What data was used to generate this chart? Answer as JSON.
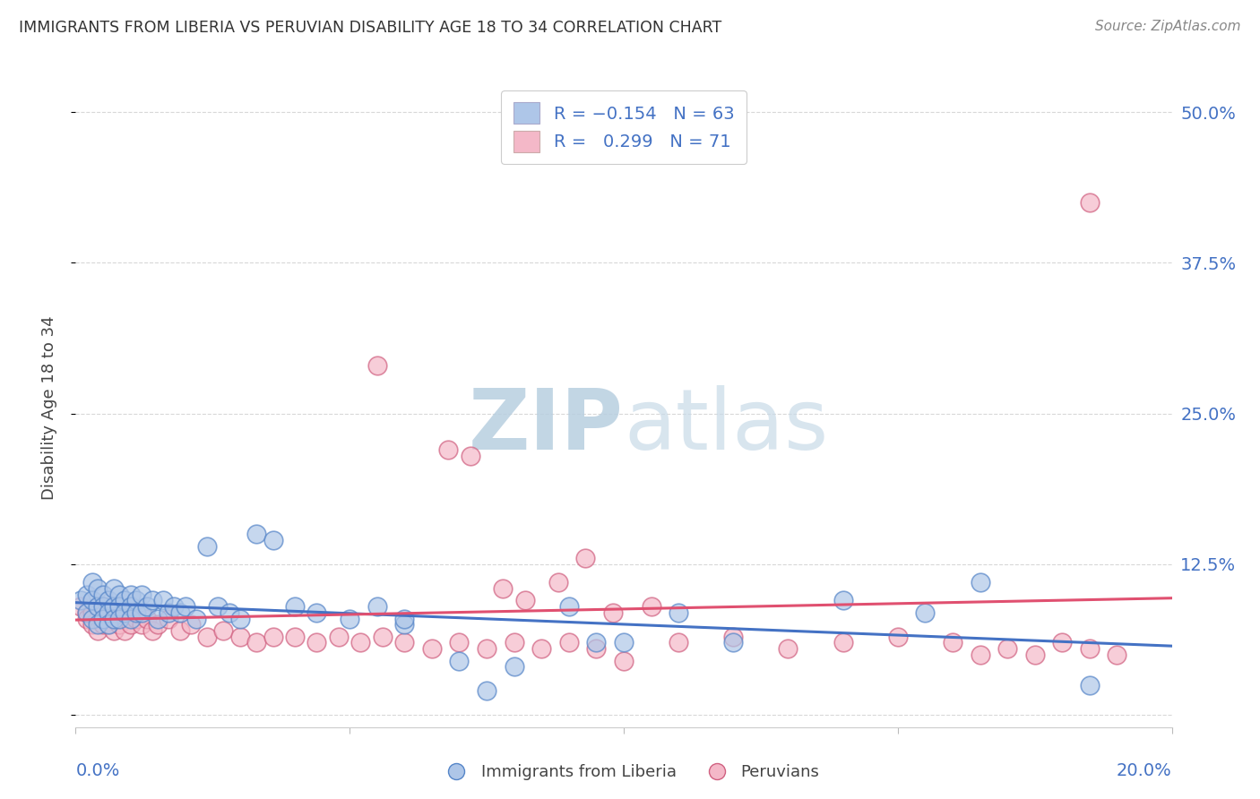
{
  "title": "IMMIGRANTS FROM LIBERIA VS PERUVIAN DISABILITY AGE 18 TO 34 CORRELATION CHART",
  "source": "Source: ZipAtlas.com",
  "ylabel": "Disability Age 18 to 34",
  "ytick_labels": [
    "",
    "12.5%",
    "25.0%",
    "37.5%",
    "50.0%"
  ],
  "ytick_values": [
    0.0,
    0.125,
    0.25,
    0.375,
    0.5
  ],
  "xlim": [
    0.0,
    0.2
  ],
  "ylim": [
    -0.01,
    0.52
  ],
  "blue_color": "#aec6e8",
  "pink_color": "#f4b8c8",
  "blue_line_color": "#4472c4",
  "pink_line_color": "#e05070",
  "blue_scatter_edge": "#5585c8",
  "pink_scatter_edge": "#d06080",
  "watermark_color": "#ccd9ea",
  "background_color": "#ffffff",
  "grid_color": "#d8d8d8",
  "title_color": "#333333",
  "axis_label_color": "#4472c4",
  "liberia_x": [
    0.001,
    0.002,
    0.002,
    0.003,
    0.003,
    0.003,
    0.004,
    0.004,
    0.004,
    0.005,
    0.005,
    0.005,
    0.006,
    0.006,
    0.006,
    0.007,
    0.007,
    0.007,
    0.008,
    0.008,
    0.008,
    0.009,
    0.009,
    0.01,
    0.01,
    0.01,
    0.011,
    0.011,
    0.012,
    0.012,
    0.013,
    0.014,
    0.015,
    0.016,
    0.017,
    0.018,
    0.019,
    0.02,
    0.022,
    0.024,
    0.026,
    0.028,
    0.03,
    0.033,
    0.036,
    0.04,
    0.044,
    0.05,
    0.055,
    0.06,
    0.07,
    0.08,
    0.09,
    0.1,
    0.11,
    0.12,
    0.14,
    0.155,
    0.165,
    0.185,
    0.06,
    0.075,
    0.095
  ],
  "liberia_y": [
    0.095,
    0.1,
    0.085,
    0.11,
    0.095,
    0.08,
    0.105,
    0.09,
    0.075,
    0.1,
    0.09,
    0.08,
    0.095,
    0.085,
    0.075,
    0.105,
    0.09,
    0.08,
    0.1,
    0.09,
    0.08,
    0.095,
    0.085,
    0.1,
    0.09,
    0.08,
    0.095,
    0.085,
    0.1,
    0.085,
    0.09,
    0.095,
    0.08,
    0.095,
    0.085,
    0.09,
    0.085,
    0.09,
    0.08,
    0.14,
    0.09,
    0.085,
    0.08,
    0.15,
    0.145,
    0.09,
    0.085,
    0.08,
    0.09,
    0.075,
    0.045,
    0.04,
    0.09,
    0.06,
    0.085,
    0.06,
    0.095,
    0.085,
    0.11,
    0.025,
    0.08,
    0.02,
    0.06
  ],
  "peruvian_x": [
    0.001,
    0.002,
    0.002,
    0.003,
    0.003,
    0.004,
    0.004,
    0.004,
    0.005,
    0.005,
    0.005,
    0.006,
    0.006,
    0.007,
    0.007,
    0.007,
    0.008,
    0.008,
    0.009,
    0.009,
    0.01,
    0.01,
    0.011,
    0.012,
    0.013,
    0.014,
    0.015,
    0.017,
    0.019,
    0.021,
    0.024,
    0.027,
    0.03,
    0.033,
    0.036,
    0.04,
    0.044,
    0.048,
    0.052,
    0.056,
    0.06,
    0.065,
    0.07,
    0.075,
    0.08,
    0.085,
    0.09,
    0.095,
    0.1,
    0.11,
    0.12,
    0.13,
    0.14,
    0.15,
    0.16,
    0.17,
    0.175,
    0.18,
    0.185,
    0.19,
    0.055,
    0.068,
    0.072,
    0.078,
    0.082,
    0.088,
    0.093,
    0.098,
    0.105,
    0.165,
    0.185
  ],
  "peruvian_y": [
    0.09,
    0.085,
    0.08,
    0.085,
    0.075,
    0.09,
    0.08,
    0.07,
    0.09,
    0.085,
    0.075,
    0.085,
    0.075,
    0.09,
    0.08,
    0.07,
    0.085,
    0.075,
    0.08,
    0.07,
    0.085,
    0.075,
    0.08,
    0.075,
    0.08,
    0.07,
    0.075,
    0.08,
    0.07,
    0.075,
    0.065,
    0.07,
    0.065,
    0.06,
    0.065,
    0.065,
    0.06,
    0.065,
    0.06,
    0.065,
    0.06,
    0.055,
    0.06,
    0.055,
    0.06,
    0.055,
    0.06,
    0.055,
    0.045,
    0.06,
    0.065,
    0.055,
    0.06,
    0.065,
    0.06,
    0.055,
    0.05,
    0.06,
    0.055,
    0.05,
    0.29,
    0.22,
    0.215,
    0.105,
    0.095,
    0.11,
    0.13,
    0.085,
    0.09,
    0.05,
    0.425
  ]
}
